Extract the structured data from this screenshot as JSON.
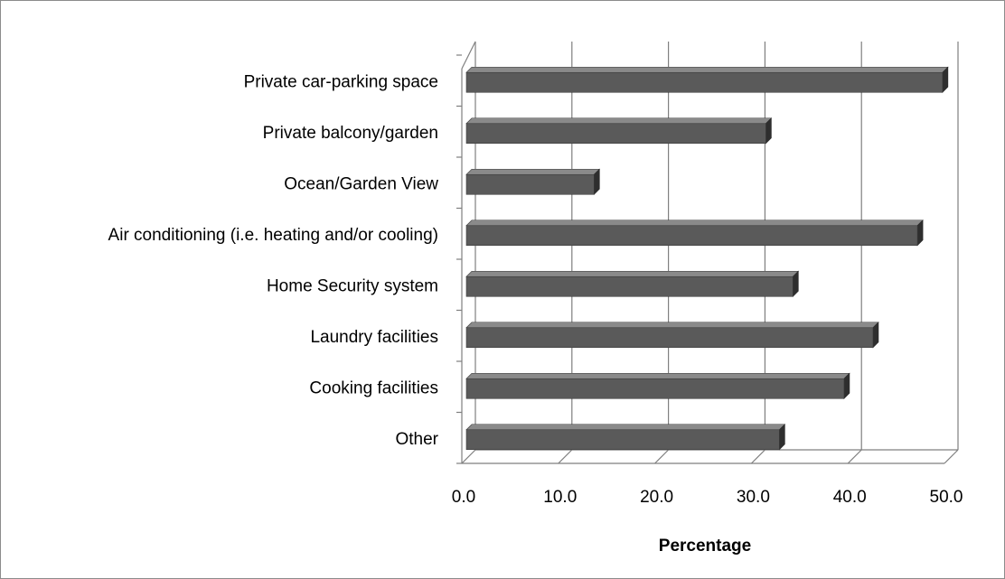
{
  "chart_data": {
    "type": "bar",
    "orientation": "horizontal",
    "style": "3d",
    "categories": [
      "Private car-parking space",
      "Private balcony/garden",
      "Ocean/Garden View",
      "Air conditioning (i.e. heating and/or cooling)",
      "Home Security system",
      "Laundry facilities",
      "Cooking facilities",
      "Other"
    ],
    "values": [
      49.8,
      31.5,
      13.7,
      47.2,
      34.3,
      42.6,
      39.6,
      32.9
    ],
    "title": "",
    "xlabel": "Percentage",
    "ylabel": "",
    "xlim": [
      0,
      50
    ],
    "xticks": [
      "0.0",
      "10.0",
      "20.0",
      "30.0",
      "40.0",
      "50.0"
    ],
    "grid": true,
    "legend": "none",
    "colors": {
      "bar_front": "#5a5a5a",
      "bar_top": "#8a8a8a",
      "bar_side": "#2e2e2e",
      "grid": "#7f7f7f"
    }
  }
}
